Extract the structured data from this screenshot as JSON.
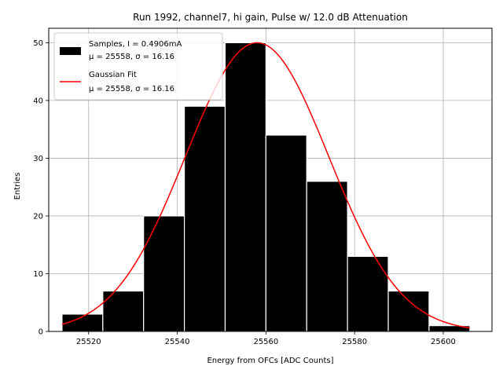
{
  "chart_data": {
    "type": "bar",
    "title": "Run 1992, channel7, hi gain, Pulse w/ 12.0 dB Attenuation",
    "xlabel": "Energy from OFCs [ADC Counts]",
    "ylabel": "Entries",
    "xlim": [
      25511,
      25611
    ],
    "ylim": [
      0,
      52.5
    ],
    "xticks": [
      25520,
      25540,
      25560,
      25580,
      25600
    ],
    "yticks": [
      0,
      10,
      20,
      30,
      40,
      50
    ],
    "grid": true,
    "legend_position": "top-left",
    "bins": [
      {
        "x0": 25514.0,
        "x1": 25523.2,
        "count": 3
      },
      {
        "x0": 25523.2,
        "x1": 25532.4,
        "count": 7
      },
      {
        "x0": 25532.4,
        "x1": 25541.6,
        "count": 20
      },
      {
        "x0": 25541.6,
        "x1": 25550.8,
        "count": 39
      },
      {
        "x0": 25550.8,
        "x1": 25560.0,
        "count": 50
      },
      {
        "x0": 25560.0,
        "x1": 25569.2,
        "count": 34
      },
      {
        "x0": 25569.2,
        "x1": 25578.4,
        "count": 26
      },
      {
        "x0": 25578.4,
        "x1": 25587.6,
        "count": 13
      },
      {
        "x0": 25587.6,
        "x1": 25596.8,
        "count": 7
      },
      {
        "x0": 25596.8,
        "x1": 25606.0,
        "count": 1
      }
    ],
    "fit": {
      "mu": 25558,
      "sigma": 16.16,
      "amplitude": 50,
      "x_range": [
        25514,
        25606
      ]
    },
    "series": [
      {
        "name": "Samples, I = 0.4906mA",
        "subtitle": "μ = 25558, σ = 16.16",
        "color": "#000000",
        "kind": "histogram"
      },
      {
        "name": "Gaussian Fit",
        "subtitle": "μ = 25558, σ = 16.16",
        "color": "#ff0000",
        "kind": "line"
      }
    ]
  }
}
